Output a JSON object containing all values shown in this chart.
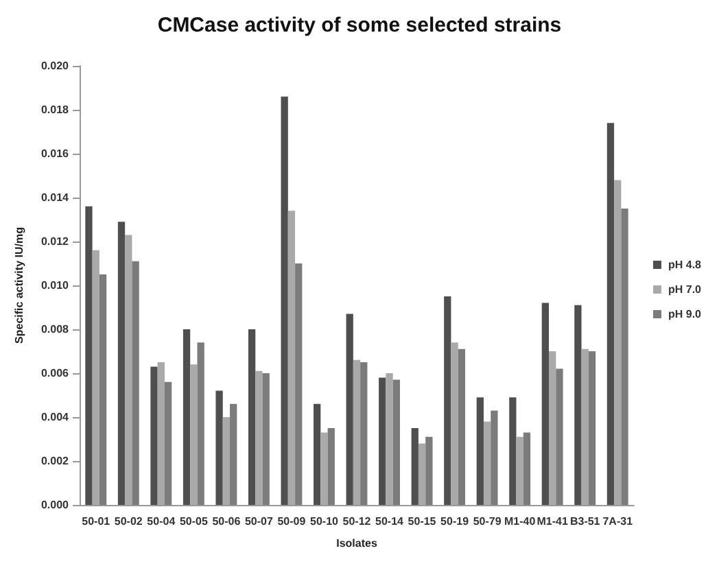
{
  "chart_data": {
    "type": "bar",
    "title": "CMCase activity of some selected strains",
    "xlabel": "Isolates",
    "ylabel": "Specific activity IU/mg",
    "categories": [
      "50-01",
      "50-02",
      "50-04",
      "50-05",
      "50-06",
      "50-07",
      "50-09",
      "50-10",
      "50-12",
      "50-14",
      "50-15",
      "50-19",
      "50-79",
      "M1-40",
      "M1-41",
      "B3-51",
      "7A-31"
    ],
    "series": [
      {
        "name": "pH 4.8",
        "color": "#4f4f4f",
        "values": [
          0.0136,
          0.0129,
          0.0063,
          0.008,
          0.0052,
          0.008,
          0.0186,
          0.0046,
          0.0087,
          0.0058,
          0.0035,
          0.0095,
          0.0049,
          0.0049,
          0.0092,
          0.0091,
          0.0174
        ]
      },
      {
        "name": "pH 7.0",
        "color": "#a9a9a9",
        "values": [
          0.0116,
          0.0123,
          0.0065,
          0.0064,
          0.004,
          0.0061,
          0.0134,
          0.0033,
          0.0066,
          0.006,
          0.0028,
          0.0074,
          0.0038,
          0.0031,
          0.007,
          0.0071,
          0.0148
        ]
      },
      {
        "name": "pH 9.0",
        "color": "#7b7b7b",
        "values": [
          0.0105,
          0.0111,
          0.0056,
          0.0074,
          0.0046,
          0.006,
          0.011,
          0.0035,
          0.0065,
          0.0057,
          0.0031,
          0.0071,
          0.0043,
          0.0033,
          0.0062,
          0.007,
          0.0135
        ]
      }
    ],
    "ylim": [
      0,
      0.02
    ],
    "yticks": [
      {
        "value": 0,
        "label": "0.000"
      },
      {
        "value": 0.002,
        "label": "0.002"
      },
      {
        "value": 0.004,
        "label": "0.004"
      },
      {
        "value": 0.006,
        "label": "0.006"
      },
      {
        "value": 0.008,
        "label": "0.008"
      },
      {
        "value": 0.01,
        "label": "0.010"
      },
      {
        "value": 0.012,
        "label": "0.012"
      },
      {
        "value": 0.014,
        "label": "0.014"
      },
      {
        "value": 0.016,
        "label": "0.016"
      },
      {
        "value": 0.018,
        "label": "0.018"
      },
      {
        "value": 0.02,
        "label": "0.020"
      }
    ],
    "grid": false,
    "legend": "right"
  }
}
